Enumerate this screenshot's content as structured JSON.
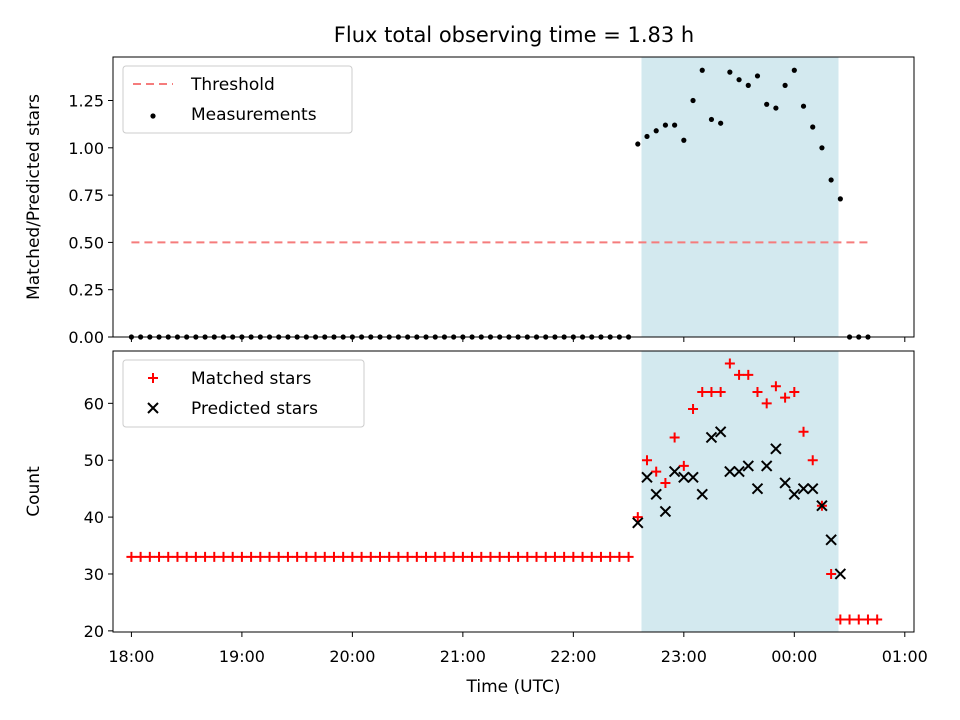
{
  "figure": {
    "title": "Flux total observing time = 1.83 h"
  },
  "chart_data": [
    {
      "type": "scatter",
      "panel": "top",
      "title": "Flux total observing time = 1.83 h",
      "xlabel": "",
      "ylabel": "Matched/Predicted stars",
      "ylim": [
        0,
        1.48
      ],
      "yticks": [
        0.0,
        0.25,
        0.5,
        0.75,
        1.0,
        1.25
      ],
      "ytick_labels": [
        "0.00",
        "0.25",
        "0.50",
        "0.75",
        "1.00",
        "1.25"
      ],
      "xlim": [
        "17:50",
        "01:05"
      ],
      "xtick_labels": [],
      "grid": false,
      "legend_position": "upper-left",
      "shaded_interval": {
        "start": "22:37",
        "end": "00:24",
        "color": "#d3e9ef"
      },
      "series": [
        {
          "name": "Threshold",
          "kind": "dashed-line",
          "color": "#f57c7c",
          "x": [
            "18:00",
            "00:42"
          ],
          "y": [
            0.5,
            0.5
          ]
        },
        {
          "name": "Measurements",
          "kind": "points",
          "color": "#000000",
          "x": [
            "18:00",
            "18:05",
            "18:10",
            "18:15",
            "18:20",
            "18:25",
            "18:30",
            "18:35",
            "18:40",
            "18:45",
            "18:50",
            "18:55",
            "19:00",
            "19:05",
            "19:10",
            "19:15",
            "19:20",
            "19:25",
            "19:30",
            "19:35",
            "19:40",
            "19:45",
            "19:50",
            "19:55",
            "20:00",
            "20:05",
            "20:10",
            "20:15",
            "20:20",
            "20:25",
            "20:30",
            "20:35",
            "20:40",
            "20:45",
            "20:50",
            "20:55",
            "21:00",
            "21:05",
            "21:10",
            "21:15",
            "21:20",
            "21:25",
            "21:30",
            "21:35",
            "21:40",
            "21:45",
            "21:50",
            "21:55",
            "22:00",
            "22:05",
            "22:10",
            "22:15",
            "22:20",
            "22:25",
            "22:30",
            "22:35",
            "22:40",
            "22:45",
            "22:50",
            "22:55",
            "23:00",
            "23:05",
            "23:10",
            "23:15",
            "23:20",
            "23:25",
            "23:30",
            "23:35",
            "23:40",
            "23:45",
            "23:50",
            "23:55",
            "00:00",
            "00:05",
            "00:10",
            "00:15",
            "00:20",
            "00:25",
            "00:30",
            "00:35",
            "00:40"
          ],
          "y": [
            0,
            0,
            0,
            0,
            0,
            0,
            0,
            0,
            0,
            0,
            0,
            0,
            0,
            0,
            0,
            0,
            0,
            0,
            0,
            0,
            0,
            0,
            0,
            0,
            0,
            0,
            0,
            0,
            0,
            0,
            0,
            0,
            0,
            0,
            0,
            0,
            0,
            0,
            0,
            0,
            0,
            0,
            0,
            0,
            0,
            0,
            0,
            0,
            0,
            0,
            0,
            0,
            0,
            0,
            0,
            1.02,
            1.06,
            1.09,
            1.12,
            1.12,
            1.04,
            1.25,
            1.41,
            1.15,
            1.13,
            1.4,
            1.36,
            1.33,
            1.38,
            1.23,
            1.21,
            1.33,
            1.41,
            1.22,
            1.11,
            1.0,
            0.83,
            0.73,
            0,
            0,
            0
          ]
        }
      ]
    },
    {
      "type": "scatter",
      "panel": "bottom",
      "xlabel": "Time (UTC)",
      "ylabel": "Count",
      "ylim": [
        19.8,
        69.2
      ],
      "yticks": [
        20,
        30,
        40,
        50,
        60
      ],
      "ytick_labels": [
        "20",
        "30",
        "40",
        "50",
        "60"
      ],
      "xlim": [
        "17:50",
        "01:05"
      ],
      "xtick_labels": [
        "18:00",
        "19:00",
        "20:00",
        "21:00",
        "22:00",
        "23:00",
        "00:00",
        "01:00"
      ],
      "grid": false,
      "legend_position": "upper-left",
      "shaded_interval": {
        "start": "22:37",
        "end": "00:24",
        "color": "#d3e9ef"
      },
      "series": [
        {
          "name": "Matched stars",
          "marker": "plus",
          "color": "#ff0000",
          "x": [
            "18:00",
            "18:05",
            "18:10",
            "18:15",
            "18:20",
            "18:25",
            "18:30",
            "18:35",
            "18:40",
            "18:45",
            "18:50",
            "18:55",
            "19:00",
            "19:05",
            "19:10",
            "19:15",
            "19:20",
            "19:25",
            "19:30",
            "19:35",
            "19:40",
            "19:45",
            "19:50",
            "19:55",
            "20:00",
            "20:05",
            "20:10",
            "20:15",
            "20:20",
            "20:25",
            "20:30",
            "20:35",
            "20:40",
            "20:45",
            "20:50",
            "20:55",
            "21:00",
            "21:05",
            "21:10",
            "21:15",
            "21:20",
            "21:25",
            "21:30",
            "21:35",
            "21:40",
            "21:45",
            "21:50",
            "21:55",
            "22:00",
            "22:05",
            "22:10",
            "22:15",
            "22:20",
            "22:25",
            "22:30",
            "22:35",
            "22:40",
            "22:45",
            "22:50",
            "22:55",
            "23:00",
            "23:05",
            "23:10",
            "23:15",
            "23:20",
            "23:25",
            "23:30",
            "23:35",
            "23:40",
            "23:45",
            "23:50",
            "23:55",
            "00:00",
            "00:05",
            "00:10",
            "00:15",
            "00:20",
            "00:25",
            "00:30",
            "00:35",
            "00:40",
            "00:45"
          ],
          "y": [
            33,
            33,
            33,
            33,
            33,
            33,
            33,
            33,
            33,
            33,
            33,
            33,
            33,
            33,
            33,
            33,
            33,
            33,
            33,
            33,
            33,
            33,
            33,
            33,
            33,
            33,
            33,
            33,
            33,
            33,
            33,
            33,
            33,
            33,
            33,
            33,
            33,
            33,
            33,
            33,
            33,
            33,
            33,
            33,
            33,
            33,
            33,
            33,
            33,
            33,
            33,
            33,
            33,
            33,
            33,
            40,
            50,
            48,
            46,
            54,
            49,
            59,
            62,
            62,
            62,
            67,
            65,
            65,
            62,
            60,
            63,
            61,
            62,
            55,
            50,
            42,
            30,
            22,
            22,
            22,
            22,
            22
          ]
        },
        {
          "name": "Predicted stars",
          "marker": "x",
          "color": "#000000",
          "x": [
            "22:35",
            "22:40",
            "22:45",
            "22:50",
            "22:55",
            "23:00",
            "23:05",
            "23:10",
            "23:15",
            "23:20",
            "23:25",
            "23:30",
            "23:35",
            "23:40",
            "23:45",
            "23:50",
            "23:55",
            "00:00",
            "00:05",
            "00:10",
            "00:15",
            "00:20",
            "00:25"
          ],
          "y": [
            39,
            47,
            44,
            41,
            48,
            47,
            47,
            44,
            54,
            55,
            48,
            48,
            49,
            45,
            49,
            52,
            46,
            44,
            45,
            45,
            42,
            36,
            30
          ]
        }
      ]
    }
  ]
}
